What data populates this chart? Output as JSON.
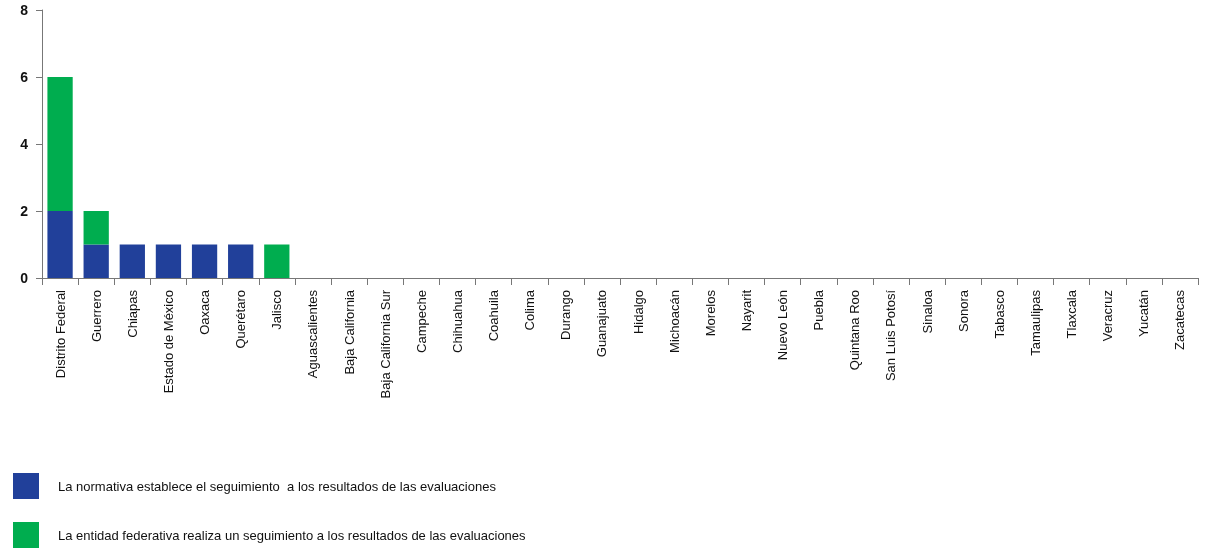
{
  "chart_data": {
    "type": "bar",
    "stacked": true,
    "legend": "bottom left",
    "grid": false,
    "categories": [
      "Distrito Federal",
      "Guerrero",
      "Chiapas",
      "Estado de México",
      "Oaxaca",
      "Querétaro",
      "Jalisco",
      "Aguascalientes",
      "Baja California",
      "Baja California Sur",
      "Campeche",
      "Chihuahua",
      "Coahuila",
      "Colima",
      "Durango",
      "Guanajuato",
      "Hidalgo",
      "Michoacán",
      "Morelos",
      "Nayarit",
      "Nuevo León",
      "Puebla",
      "Quintana Roo",
      "San Luis Potosí",
      "Sinaloa",
      "Sonora",
      "Tabasco",
      "Tamaulipas",
      "Tlaxcala",
      "Veracruz",
      "Yucatán",
      "Zacatecas"
    ],
    "ylim": [
      0,
      8
    ],
    "yticks": [
      0,
      2,
      4,
      6,
      8
    ],
    "series": [
      {
        "name": "La normativa establece el seguimiento  a los resultados de las evaluaciones",
        "color": "#21409a",
        "values": [
          2,
          1,
          1,
          1,
          1,
          1,
          0,
          0,
          0,
          0,
          0,
          0,
          0,
          0,
          0,
          0,
          0,
          0,
          0,
          0,
          0,
          0,
          0,
          0,
          0,
          0,
          0,
          0,
          0,
          0,
          0,
          0
        ]
      },
      {
        "name": "La entidad federativa realiza un seguimiento a los resultados de las evaluaciones",
        "color": "#00ad4f",
        "values": [
          4,
          1,
          0,
          0,
          0,
          0,
          1,
          0,
          0,
          0,
          0,
          0,
          0,
          0,
          0,
          0,
          0,
          0,
          0,
          0,
          0,
          0,
          0,
          0,
          0,
          0,
          0,
          0,
          0,
          0,
          0,
          0
        ]
      }
    ]
  }
}
